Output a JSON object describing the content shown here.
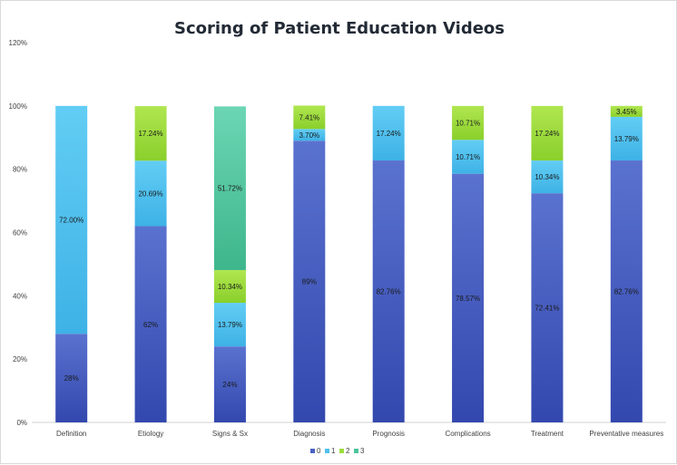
{
  "chart_data": {
    "type": "bar",
    "stacked": true,
    "title": "Scoring of Patient Education Videos",
    "xlabel": "",
    "ylabel": "",
    "ylim": [
      0,
      120
    ],
    "yticks": [
      "0%",
      "20%",
      "40%",
      "60%",
      "80%",
      "100%",
      "120%"
    ],
    "grid": false,
    "legend_position": "bottom",
    "categories": [
      "Definition",
      "Etiology",
      "Signs & Sx",
      "Diagnosis",
      "Prognosis",
      "Complications",
      "Treatment",
      "Preventative measures"
    ],
    "series": [
      {
        "name": "0",
        "color": "#4a61c4",
        "values": [
          28,
          62,
          24,
          89,
          82.76,
          78.57,
          72.41,
          82.76
        ],
        "labels": [
          "28%",
          "62%",
          "24%",
          "89%",
          "82.76%",
          "78.57%",
          "72.41%",
          "82.76%"
        ]
      },
      {
        "name": "1",
        "color": "#4cc0ee",
        "values": [
          72,
          20.69,
          13.79,
          3.7,
          17.24,
          10.71,
          10.34,
          13.79
        ],
        "labels": [
          "72.00%",
          "20.69%",
          "13.79%",
          "3.70%",
          "17.24%",
          "10.71%",
          "10.34%",
          "13.79%"
        ]
      },
      {
        "name": "2",
        "color": "#9cdc3c",
        "values": [
          0,
          17.24,
          10.34,
          7.41,
          0,
          10.71,
          17.24,
          3.45
        ],
        "labels": [
          "",
          "17.24%",
          "10.34%",
          "7.41%",
          "",
          "10.71%",
          "17.24%",
          "3.45%"
        ]
      },
      {
        "name": "3",
        "color": "#4cc49c",
        "values": [
          0,
          0,
          51.72,
          0,
          0,
          0,
          0,
          0
        ],
        "labels": [
          "",
          "",
          "51.72%",
          "",
          "",
          "",
          "",
          ""
        ]
      }
    ]
  }
}
